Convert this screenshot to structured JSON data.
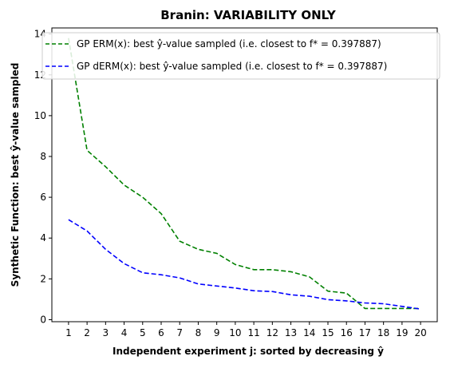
{
  "chart_data": {
    "type": "line",
    "title": "Branin: VARIABILITY ONLY",
    "xlabel": "Independent experiment j: sorted by decreasing ŷ",
    "ylabel": "Synthetic Function: best ŷ-value sampled",
    "x": [
      1,
      2,
      3,
      4,
      5,
      6,
      7,
      8,
      9,
      10,
      11,
      12,
      13,
      14,
      15,
      16,
      17,
      18,
      19,
      20
    ],
    "xlim": [
      0.1,
      20.9
    ],
    "ylim": [
      -0.1,
      14.3
    ],
    "yticks": [
      0,
      2,
      4,
      6,
      8,
      10,
      12,
      14
    ],
    "grid": false,
    "legend_position": "top-right",
    "series": [
      {
        "name": "GP ERM(x):   best ŷ-value sampled (i.e. closest to f* = 0.397887)",
        "color": "#008000",
        "line_style": "dashed",
        "values": [
          13.8,
          8.3,
          7.5,
          6.6,
          6.0,
          5.2,
          3.85,
          3.45,
          3.25,
          2.7,
          2.45,
          2.45,
          2.35,
          2.1,
          1.4,
          1.3,
          0.55,
          0.55,
          0.55,
          0.55
        ]
      },
      {
        "name": "GP dERM(x): best ŷ-value sampled (i.e. closest to f* = 0.397887)",
        "color": "#0000ff",
        "line_style": "dashed",
        "values": [
          4.9,
          4.35,
          3.45,
          2.75,
          2.3,
          2.2,
          2.05,
          1.75,
          1.65,
          1.55,
          1.42,
          1.38,
          1.22,
          1.15,
          0.98,
          0.92,
          0.82,
          0.78,
          0.65,
          0.52
        ]
      }
    ]
  }
}
